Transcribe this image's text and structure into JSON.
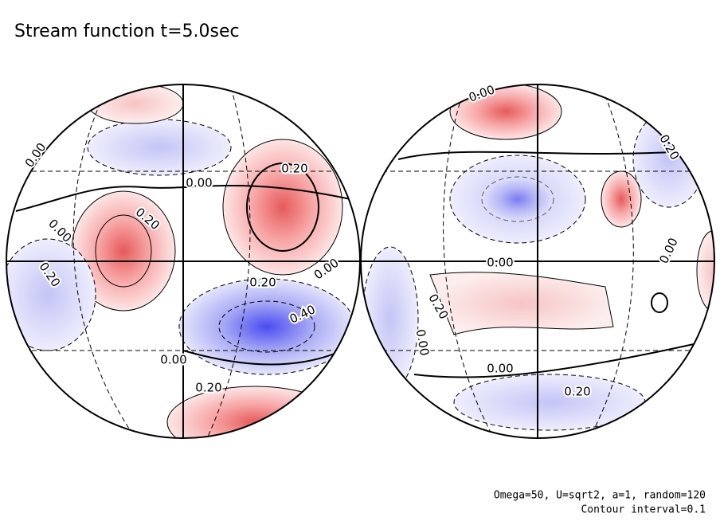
{
  "title": "Stream function t=5.0sec",
  "footer": [
    "Omega=50, U=sqrt2, a=1, random=120",
    "Contour interval=0.1"
  ],
  "left_globe": {
    "contour_labels": [
      "0.00",
      "0.20",
      "0.00",
      "0.20",
      "0.00",
      "0.20",
      "0.00",
      "0.20",
      "0.40",
      "0.00",
      "0.20"
    ]
  },
  "right_globe": {
    "contour_labels": [
      "0.00",
      "0.20",
      "0.00",
      "0.00",
      "0.20",
      "0.00",
      "0.00",
      "0.20"
    ]
  }
}
